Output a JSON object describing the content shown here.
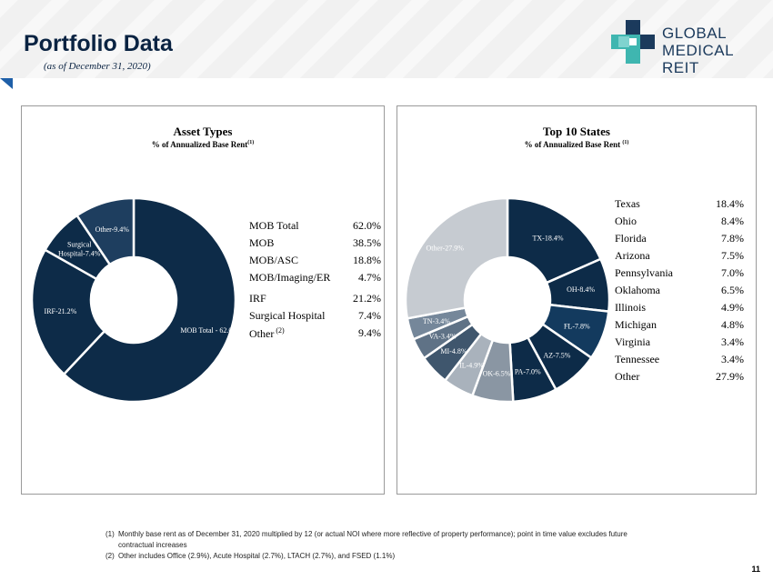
{
  "header": {
    "title": "Portfolio Data",
    "subtitle": "(as of December 31, 2020)",
    "logo_line1": "GLOBAL",
    "logo_line2": "MEDICAL REIT"
  },
  "chart_data": [
    {
      "type": "pie",
      "title": "Asset Types",
      "subtitle": "% of Annualized Base Rent",
      "subtitle_note": "(1)",
      "slices": [
        {
          "label": "MOB Total - 62.0%",
          "value": 62.0,
          "color": "#0d2b48"
        },
        {
          "label": "IRF-21.2%",
          "value": 21.2,
          "color": "#0d2b48"
        },
        {
          "label": "Surgical Hospital-7.4%",
          "value": 7.4,
          "color": "#0d2b48"
        },
        {
          "label": "Other-9.4%",
          "value": 9.4,
          "color": "#1e3e5f"
        }
      ],
      "legend": [
        {
          "label": "MOB Total",
          "value": "62.0%"
        },
        {
          "label": "MOB",
          "value": "38.5%"
        },
        {
          "label": "MOB/ASC",
          "value": "18.8%"
        },
        {
          "label": "MOB/Imaging/ER",
          "value": "4.7%"
        },
        {
          "label": "IRF",
          "value": "21.2%"
        },
        {
          "label": "Surgical Hospital",
          "value": "7.4%"
        },
        {
          "label": "Other",
          "note": "(2)",
          "value": "9.4%"
        }
      ]
    },
    {
      "type": "pie",
      "title": "Top 10 States",
      "subtitle": "% of Annualized Base Rent",
      "subtitle_note": "(1)",
      "slices": [
        {
          "label": "TX-18.4%",
          "value": 18.4,
          "color": "#0d2b48"
        },
        {
          "label": "OH-8.4%",
          "value": 8.4,
          "color": "#0d2b48"
        },
        {
          "label": "FL-7.8%",
          "value": 7.8,
          "color": "#133a5e"
        },
        {
          "label": "AZ-7.5%",
          "value": 7.5,
          "color": "#0d2b48"
        },
        {
          "label": "PA-7.0%",
          "value": 7.0,
          "color": "#0d2b48"
        },
        {
          "label": "OK-6.5%",
          "value": 6.5,
          "color": "#8a96a3"
        },
        {
          "label": "IL-4.9%",
          "value": 4.9,
          "color": "#a9b2bc"
        },
        {
          "label": "MI-4.8%",
          "value": 4.8,
          "color": "#3f566d"
        },
        {
          "label": "VA-3.4%",
          "value": 3.4,
          "color": "#5f7286"
        },
        {
          "label": "TN-3.4%",
          "value": 3.4,
          "color": "#75879a"
        },
        {
          "label": "Other-27.9%",
          "value": 27.9,
          "color": "#c6cbd1"
        }
      ],
      "legend": [
        {
          "label": "Texas",
          "value": "18.4%"
        },
        {
          "label": "Ohio",
          "value": "8.4%"
        },
        {
          "label": "Florida",
          "value": "7.8%"
        },
        {
          "label": "Arizona",
          "value": "7.5%"
        },
        {
          "label": "Pennsylvania",
          "value": "7.0%"
        },
        {
          "label": "Oklahoma",
          "value": "6.5%"
        },
        {
          "label": "Illinois",
          "value": "4.9%"
        },
        {
          "label": "Michigan",
          "value": "4.8%"
        },
        {
          "label": "Virginia",
          "value": "3.4%"
        },
        {
          "label": "Tennessee",
          "value": "3.4%"
        },
        {
          "label": "Other",
          "value": "27.9%"
        }
      ]
    }
  ],
  "footnotes": [
    {
      "num": "(1)",
      "text": "Monthly base rent as of December 31, 2020 multiplied by 12 (or actual NOI where more reflective of property performance); point in time value excludes future contractual increases"
    },
    {
      "num": "(2)",
      "text": "Other includes Office (2.9%), Acute Hospital (2.7%), LTACH (2.7%), and FSED (1.1%)"
    }
  ],
  "page_number": "11"
}
